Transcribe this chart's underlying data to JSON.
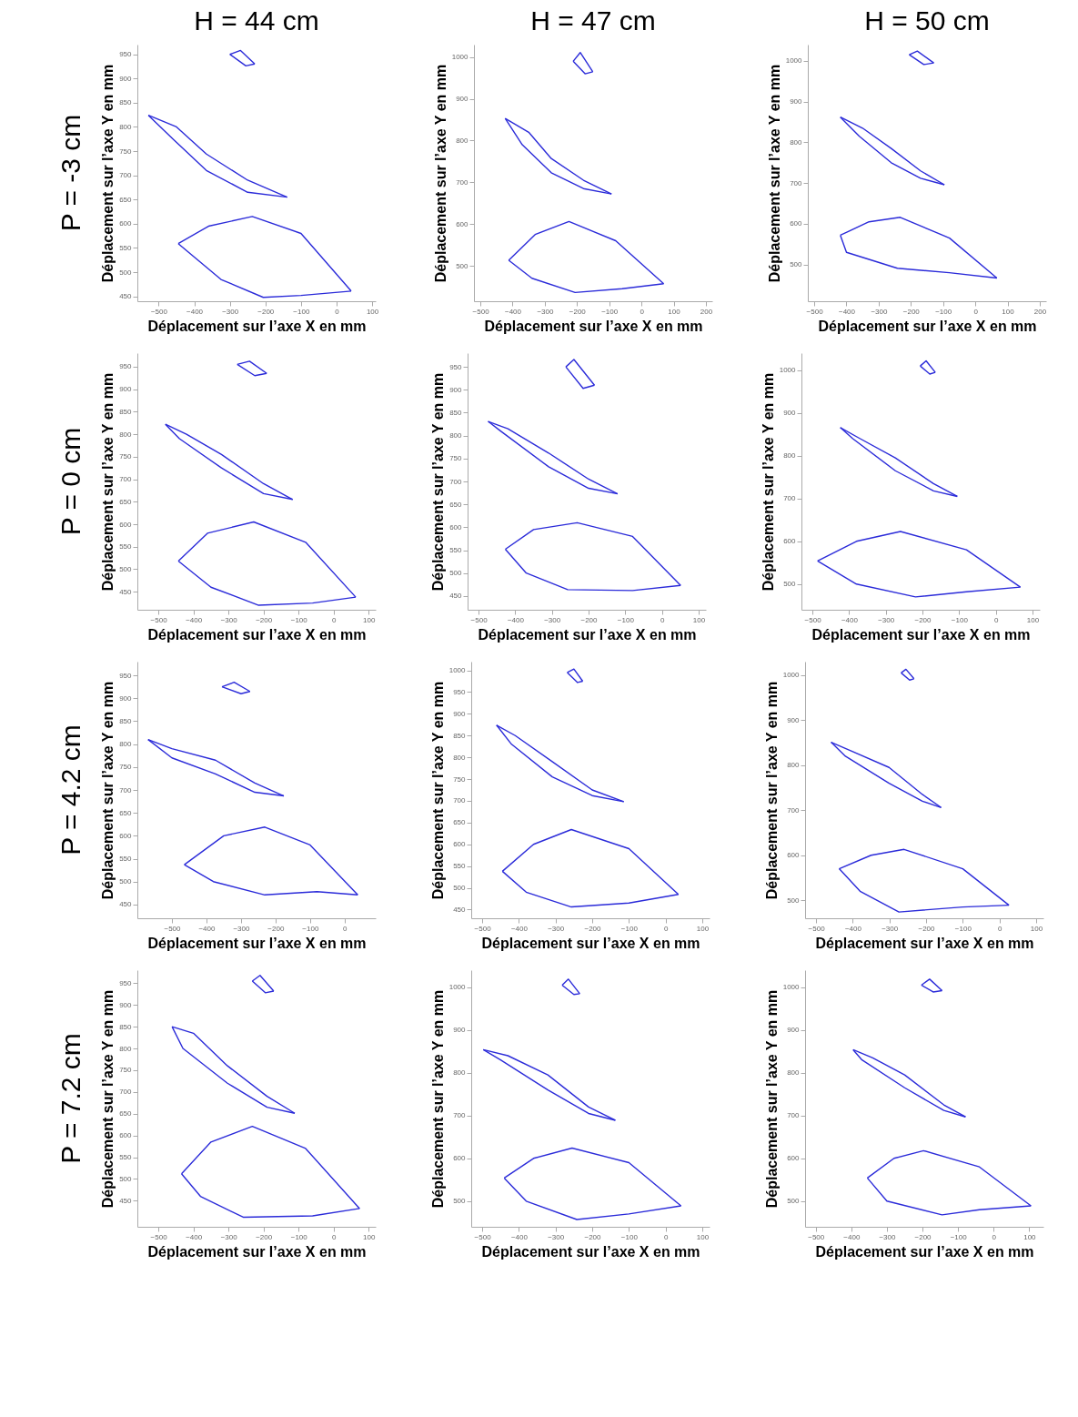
{
  "chart_data": [
    {
      "type": "line",
      "title": "H = 44 cm",
      "annotations": [
        "P = -3 cm"
      ],
      "xlabel": "Déplacement sur l’axe X en mm",
      "ylabel": "Déplacement sur l’axe Y en mm",
      "xlim": [
        -560,
        110
      ],
      "xticks": [
        -500,
        -400,
        -300,
        -200,
        -100,
        0,
        100
      ],
      "ylim": [
        440,
        970
      ],
      "yticks": [
        450,
        500,
        550,
        600,
        650,
        700,
        750,
        800,
        850,
        900,
        950
      ],
      "series": [
        {
          "color": "#2b2bd9",
          "x": [
            -300,
            -270,
            -230
          ],
          "values": [
            950,
            958,
            930
          ]
        },
        {
          "color": "#2b2bd9",
          "x": [
            -300,
            -255,
            -230
          ],
          "values": [
            950,
            926,
            930
          ]
        },
        {
          "color": "#2b2bd9",
          "x": [
            -529,
            -450,
            -366,
            -250,
            -139
          ],
          "values": [
            824,
            800,
            744,
            690,
            655
          ]
        },
        {
          "color": "#2b2bd9",
          "x": [
            -529,
            -460,
            -366,
            -250,
            -139
          ],
          "values": [
            824,
            775,
            710,
            665,
            655
          ]
        },
        {
          "color": "#2b2bd9",
          "x": [
            -445,
            -360,
            -237,
            -100,
            41
          ],
          "values": [
            559,
            595,
            615,
            580,
            461
          ]
        },
        {
          "color": "#2b2bd9",
          "x": [
            -445,
            -325,
            -206,
            -100,
            41
          ],
          "values": [
            559,
            485,
            448,
            452,
            461
          ]
        }
      ]
    },
    {
      "type": "line",
      "title": "H = 47 cm",
      "xlabel": "Déplacement sur l’axe X en mm",
      "ylabel": "Déplacement sur l’axe Y en mm",
      "xlim": [
        -520,
        220
      ],
      "xticks": [
        -500,
        -400,
        -300,
        -200,
        -100,
        0,
        100,
        200
      ],
      "ylim": [
        415,
        1030
      ],
      "yticks": [
        500,
        600,
        700,
        800,
        900,
        1000
      ],
      "series": [
        {
          "color": "#2b2bd9",
          "x": [
            -212,
            -190,
            -151
          ],
          "values": [
            990,
            1011,
            965
          ]
        },
        {
          "color": "#2b2bd9",
          "x": [
            -212,
            -175,
            -151
          ],
          "values": [
            990,
            960,
            965
          ]
        },
        {
          "color": "#2b2bd9",
          "x": [
            -423,
            -350,
            -280,
            -180,
            -93
          ],
          "values": [
            853,
            820,
            757,
            705,
            672
          ]
        },
        {
          "color": "#2b2bd9",
          "x": [
            -423,
            -370,
            -280,
            -180,
            -93
          ],
          "values": [
            853,
            790,
            723,
            685,
            672
          ]
        },
        {
          "color": "#2b2bd9",
          "x": [
            -412,
            -330,
            -225,
            -80,
            69
          ],
          "values": [
            513,
            575,
            606,
            560,
            457
          ]
        },
        {
          "color": "#2b2bd9",
          "x": [
            -412,
            -340,
            -206,
            -60,
            69
          ],
          "values": [
            513,
            470,
            436,
            445,
            457
          ]
        }
      ]
    },
    {
      "type": "line",
      "title": "H = 50 cm",
      "xlabel": "Déplacement sur l’axe X en mm",
      "ylabel": "Déplacement sur l’axe Y en mm",
      "xlim": [
        -520,
        220
      ],
      "xticks": [
        -500,
        -400,
        -300,
        -200,
        -100,
        0,
        100,
        200
      ],
      "ylim": [
        410,
        1040
      ],
      "yticks": [
        500,
        600,
        700,
        800,
        900,
        1000
      ],
      "series": [
        {
          "color": "#2b2bd9",
          "x": [
            -205,
            -180,
            -129
          ],
          "values": [
            1015,
            1024,
            995
          ]
        },
        {
          "color": "#2b2bd9",
          "x": [
            -205,
            -160,
            -129
          ],
          "values": [
            1015,
            991,
            995
          ]
        },
        {
          "color": "#2b2bd9",
          "x": [
            -419,
            -350,
            -261,
            -170,
            -96
          ],
          "values": [
            862,
            835,
            785,
            730,
            696
          ]
        },
        {
          "color": "#2b2bd9",
          "x": [
            -419,
            -360,
            -261,
            -170,
            -96
          ],
          "values": [
            862,
            815,
            750,
            712,
            696
          ]
        },
        {
          "color": "#2b2bd9",
          "x": [
            -419,
            -330,
            -233,
            -80,
            67
          ],
          "values": [
            572,
            605,
            616,
            565,
            467
          ]
        },
        {
          "color": "#2b2bd9",
          "x": [
            -419,
            -400,
            -242,
            -81,
            67
          ],
          "values": [
            572,
            530,
            491,
            480,
            467
          ]
        }
      ]
    },
    {
      "type": "line",
      "annotations": [
        "P = 0 cm"
      ],
      "xlabel": "Déplacement sur l’axe X en mm",
      "ylabel": "Déplacement sur l’axe Y en mm",
      "xlim": [
        -560,
        120
      ],
      "xticks": [
        -500,
        -400,
        -300,
        -200,
        -100,
        0,
        100
      ],
      "ylim": [
        410,
        980
      ],
      "yticks": [
        450,
        500,
        550,
        600,
        650,
        700,
        750,
        800,
        850,
        900,
        950
      ],
      "series": [
        {
          "color": "#2b2bd9",
          "x": [
            -275,
            -240,
            -191
          ],
          "values": [
            955,
            962,
            935
          ]
        },
        {
          "color": "#2b2bd9",
          "x": [
            -275,
            -225,
            -191
          ],
          "values": [
            955,
            930,
            935
          ]
        },
        {
          "color": "#2b2bd9",
          "x": [
            -480,
            -420,
            -320,
            -200,
            -117
          ],
          "values": [
            822,
            800,
            755,
            690,
            655
          ]
        },
        {
          "color": "#2b2bd9",
          "x": [
            -480,
            -440,
            -320,
            -200,
            -117
          ],
          "values": [
            822,
            790,
            725,
            668,
            655
          ]
        },
        {
          "color": "#2b2bd9",
          "x": [
            -443,
            -360,
            -228,
            -80,
            63
          ],
          "values": [
            518,
            580,
            605,
            560,
            438
          ]
        },
        {
          "color": "#2b2bd9",
          "x": [
            -443,
            -350,
            -214,
            -60,
            63
          ],
          "values": [
            518,
            460,
            420,
            425,
            438
          ]
        }
      ]
    },
    {
      "type": "line",
      "xlabel": "Déplacement sur l’axe X en mm",
      "ylabel": "Déplacement sur l’axe Y en mm",
      "xlim": [
        -530,
        120
      ],
      "xticks": [
        -500,
        -400,
        -300,
        -200,
        -100,
        0,
        100
      ],
      "ylim": [
        420,
        980
      ],
      "yticks": [
        450,
        500,
        550,
        600,
        650,
        700,
        750,
        800,
        850,
        900,
        950
      ],
      "series": [
        {
          "color": "#2b2bd9",
          "x": [
            -262,
            -240,
            -184
          ],
          "values": [
            950,
            966,
            910
          ]
        },
        {
          "color": "#2b2bd9",
          "x": [
            -262,
            -215,
            -184
          ],
          "values": [
            950,
            903,
            910
          ]
        },
        {
          "color": "#2b2bd9",
          "x": [
            -474,
            -420,
            -309,
            -200,
            -121
          ],
          "values": [
            831,
            815,
            762,
            705,
            673
          ]
        },
        {
          "color": "#2b2bd9",
          "x": [
            -474,
            -440,
            -309,
            -200,
            -121
          ],
          "values": [
            831,
            810,
            732,
            685,
            673
          ]
        },
        {
          "color": "#2b2bd9",
          "x": [
            -427,
            -350,
            -231,
            -80,
            51
          ],
          "values": [
            552,
            595,
            610,
            580,
            473
          ]
        },
        {
          "color": "#2b2bd9",
          "x": [
            -427,
            -370,
            -257,
            -80,
            51
          ],
          "values": [
            552,
            500,
            464,
            462,
            473
          ]
        }
      ]
    },
    {
      "type": "line",
      "xlabel": "Déplacement sur l’axe X en mm",
      "ylabel": "Déplacement sur l’axe Y en mm",
      "xlim": [
        -530,
        120
      ],
      "xticks": [
        -500,
        -400,
        -300,
        -200,
        -100,
        0,
        100
      ],
      "ylim": [
        440,
        1040
      ],
      "yticks": [
        500,
        600,
        700,
        800,
        900,
        1000
      ],
      "series": [
        {
          "color": "#2b2bd9",
          "x": [
            -206,
            -190,
            -165
          ],
          "values": [
            1010,
            1022,
            995
          ]
        },
        {
          "color": "#2b2bd9",
          "x": [
            -206,
            -180,
            -165
          ],
          "values": [
            1010,
            991,
            995
          ]
        },
        {
          "color": "#2b2bd9",
          "x": [
            -424,
            -370,
            -274,
            -170,
            -105
          ],
          "values": [
            866,
            840,
            795,
            735,
            705
          ]
        },
        {
          "color": "#2b2bd9",
          "x": [
            -424,
            -390,
            -274,
            -170,
            -105
          ],
          "values": [
            866,
            840,
            765,
            718,
            705
          ]
        },
        {
          "color": "#2b2bd9",
          "x": [
            -486,
            -380,
            -260,
            -80,
            67
          ],
          "values": [
            554,
            600,
            623,
            580,
            493
          ]
        },
        {
          "color": "#2b2bd9",
          "x": [
            -486,
            -380,
            -219,
            -80,
            67
          ],
          "values": [
            554,
            500,
            470,
            482,
            493
          ]
        }
      ]
    },
    {
      "type": "line",
      "annotations": [
        "P = 4.2 cm"
      ],
      "xlabel": "Déplacement sur l’axe X en mm",
      "ylabel": "Déplacement sur l’axe Y en mm",
      "xlim": [
        -600,
        90
      ],
      "xticks": [
        -500,
        -400,
        -300,
        -200,
        -100,
        0
      ],
      "ylim": [
        420,
        980
      ],
      "yticks": [
        450,
        500,
        550,
        600,
        650,
        700,
        750,
        800,
        850,
        900,
        950
      ],
      "series": [
        {
          "color": "#2b2bd9",
          "x": [
            -355,
            -320,
            -274
          ],
          "values": [
            925,
            935,
            915
          ]
        },
        {
          "color": "#2b2bd9",
          "x": [
            -355,
            -300,
            -274
          ],
          "values": [
            925,
            910,
            915
          ]
        },
        {
          "color": "#2b2bd9",
          "x": [
            -569,
            -500,
            -374,
            -260,
            -176
          ],
          "values": [
            810,
            790,
            765,
            715,
            687
          ]
        },
        {
          "color": "#2b2bd9",
          "x": [
            -569,
            -500,
            -374,
            -260,
            -176
          ],
          "values": [
            810,
            770,
            735,
            695,
            687
          ]
        },
        {
          "color": "#2b2bd9",
          "x": [
            -464,
            -350,
            -231,
            -100,
            38
          ],
          "values": [
            537,
            600,
            619,
            580,
            471
          ]
        },
        {
          "color": "#2b2bd9",
          "x": [
            -464,
            -380,
            -231,
            -80,
            38
          ],
          "values": [
            537,
            500,
            471,
            478,
            471
          ]
        }
      ]
    },
    {
      "type": "line",
      "xlabel": "Déplacement sur l’axe X en mm",
      "ylabel": "Déplacement sur l’axe Y en mm",
      "xlim": [
        -530,
        120
      ],
      "xticks": [
        -500,
        -400,
        -300,
        -200,
        -100,
        0,
        100
      ],
      "ylim": [
        430,
        1020
      ],
      "yticks": [
        450,
        500,
        550,
        600,
        650,
        700,
        750,
        800,
        850,
        900,
        950,
        1000
      ],
      "series": [
        {
          "color": "#2b2bd9",
          "x": [
            -268,
            -250,
            -226
          ],
          "values": [
            995,
            1003,
            975
          ]
        },
        {
          "color": "#2b2bd9",
          "x": [
            -268,
            -240,
            -226
          ],
          "values": [
            995,
            972,
            975
          ]
        },
        {
          "color": "#2b2bd9",
          "x": [
            -461,
            -410,
            -309,
            -200,
            -114
          ],
          "values": [
            874,
            850,
            790,
            725,
            698
          ]
        },
        {
          "color": "#2b2bd9",
          "x": [
            -461,
            -420,
            -309,
            -200,
            -114
          ],
          "values": [
            874,
            830,
            755,
            712,
            698
          ]
        },
        {
          "color": "#2b2bd9",
          "x": [
            -445,
            -360,
            -257,
            -100,
            35
          ],
          "values": [
            538,
            600,
            634,
            590,
            485
          ]
        },
        {
          "color": "#2b2bd9",
          "x": [
            -445,
            -380,
            -257,
            -100,
            35
          ],
          "values": [
            538,
            490,
            456,
            465,
            485
          ]
        }
      ]
    },
    {
      "type": "line",
      "xlabel": "Déplacement sur l’axe X en mm",
      "ylabel": "Déplacement sur l’axe Y en mm",
      "xlim": [
        -530,
        120
      ],
      "xticks": [
        -500,
        -400,
        -300,
        -200,
        -100,
        0,
        100
      ],
      "ylim": [
        460,
        1030
      ],
      "yticks": [
        500,
        600,
        700,
        800,
        900,
        1000
      ],
      "series": [
        {
          "color": "#2b2bd9",
          "x": [
            -268,
            -255,
            -233
          ],
          "values": [
            1005,
            1013,
            992
          ]
        },
        {
          "color": "#2b2bd9",
          "x": [
            -268,
            -245,
            -233
          ],
          "values": [
            1005,
            989,
            992
          ]
        },
        {
          "color": "#2b2bd9",
          "x": [
            -459,
            -400,
            -301,
            -210,
            -159
          ],
          "values": [
            851,
            830,
            795,
            735,
            706
          ]
        },
        {
          "color": "#2b2bd9",
          "x": [
            -459,
            -420,
            -301,
            -210,
            -159
          ],
          "values": [
            851,
            820,
            760,
            720,
            706
          ]
        },
        {
          "color": "#2b2bd9",
          "x": [
            -437,
            -350,
            -260,
            -100,
            26
          ],
          "values": [
            570,
            600,
            613,
            570,
            489
          ]
        },
        {
          "color": "#2b2bd9",
          "x": [
            -437,
            -380,
            -274,
            -100,
            26
          ],
          "values": [
            570,
            520,
            474,
            485,
            489
          ]
        }
      ]
    },
    {
      "type": "line",
      "annotations": [
        "P = 7.2 cm"
      ],
      "xlabel": "Déplacement sur l’axe X en mm",
      "ylabel": "Déplacement sur l’axe Y en mm",
      "xlim": [
        -560,
        120
      ],
      "xticks": [
        -500,
        -400,
        -300,
        -200,
        -100,
        0,
        100
      ],
      "ylim": [
        390,
        980
      ],
      "yticks": [
        450,
        500,
        550,
        600,
        650,
        700,
        750,
        800,
        850,
        900,
        950
      ],
      "series": [
        {
          "color": "#2b2bd9",
          "x": [
            -232,
            -210,
            -171
          ],
          "values": [
            955,
            968,
            932
          ]
        },
        {
          "color": "#2b2bd9",
          "x": [
            -232,
            -195,
            -171
          ],
          "values": [
            955,
            928,
            932
          ]
        },
        {
          "color": "#2b2bd9",
          "x": [
            -461,
            -400,
            -303,
            -190,
            -111
          ],
          "values": [
            850,
            835,
            760,
            690,
            651
          ]
        },
        {
          "color": "#2b2bd9",
          "x": [
            -461,
            -430,
            -303,
            -190,
            -111
          ],
          "values": [
            850,
            800,
            720,
            665,
            651
          ]
        },
        {
          "color": "#2b2bd9",
          "x": [
            -434,
            -350,
            -232,
            -80,
            74
          ],
          "values": [
            512,
            585,
            621,
            570,
            432
          ]
        },
        {
          "color": "#2b2bd9",
          "x": [
            -434,
            -380,
            -258,
            -60,
            74
          ],
          "values": [
            512,
            460,
            412,
            415,
            432
          ]
        }
      ]
    },
    {
      "type": "line",
      "xlabel": "Déplacement sur l’axe X en mm",
      "ylabel": "Déplacement sur l’axe Y en mm",
      "xlim": [
        -530,
        120
      ],
      "xticks": [
        -500,
        -400,
        -300,
        -200,
        -100,
        0,
        100
      ],
      "ylim": [
        440,
        1040
      ],
      "yticks": [
        500,
        600,
        700,
        800,
        900,
        1000
      ],
      "series": [
        {
          "color": "#2b2bd9",
          "x": [
            -282,
            -265,
            -234
          ],
          "values": [
            1005,
            1019,
            985
          ]
        },
        {
          "color": "#2b2bd9",
          "x": [
            -282,
            -250,
            -234
          ],
          "values": [
            1005,
            983,
            985
          ]
        },
        {
          "color": "#2b2bd9",
          "x": [
            -497,
            -430,
            -321,
            -210,
            -137
          ],
          "values": [
            854,
            840,
            795,
            720,
            689
          ]
        },
        {
          "color": "#2b2bd9",
          "x": [
            -497,
            -450,
            -321,
            -210,
            -137
          ],
          "values": [
            854,
            830,
            760,
            705,
            689
          ]
        },
        {
          "color": "#2b2bd9",
          "x": [
            -440,
            -360,
            -255,
            -100,
            42
          ],
          "values": [
            554,
            600,
            624,
            590,
            489
          ]
        },
        {
          "color": "#2b2bd9",
          "x": [
            -440,
            -380,
            -242,
            -100,
            42
          ],
          "values": [
            554,
            500,
            457,
            470,
            489
          ]
        }
      ]
    },
    {
      "type": "line",
      "xlabel": "Déplacement sur l’axe X en mm",
      "ylabel": "Déplacement sur l’axe Y en mm",
      "xlim": [
        -530,
        140
      ],
      "xticks": [
        -500,
        -400,
        -300,
        -200,
        -100,
        0,
        100
      ],
      "ylim": [
        440,
        1040
      ],
      "yticks": [
        500,
        600,
        700,
        800,
        900,
        1000
      ],
      "series": [
        {
          "color": "#2b2bd9",
          "x": [
            -203,
            -180,
            -145
          ],
          "values": [
            1005,
            1019,
            992
          ]
        },
        {
          "color": "#2b2bd9",
          "x": [
            -203,
            -170,
            -145
          ],
          "values": [
            1005,
            989,
            992
          ]
        },
        {
          "color": "#2b2bd9",
          "x": [
            -395,
            -340,
            -250,
            -140,
            -79
          ],
          "values": [
            854,
            835,
            795,
            725,
            697
          ]
        },
        {
          "color": "#2b2bd9",
          "x": [
            -395,
            -370,
            -250,
            -140,
            -79
          ],
          "values": [
            854,
            830,
            765,
            712,
            697
          ]
        },
        {
          "color": "#2b2bd9",
          "x": [
            -355,
            -280,
            -197,
            -40,
            105
          ],
          "values": [
            554,
            600,
            618,
            580,
            489
          ]
        },
        {
          "color": "#2b2bd9",
          "x": [
            -355,
            -300,
            -145,
            -40,
            105
          ],
          "values": [
            554,
            500,
            468,
            480,
            489
          ]
        }
      ]
    }
  ]
}
